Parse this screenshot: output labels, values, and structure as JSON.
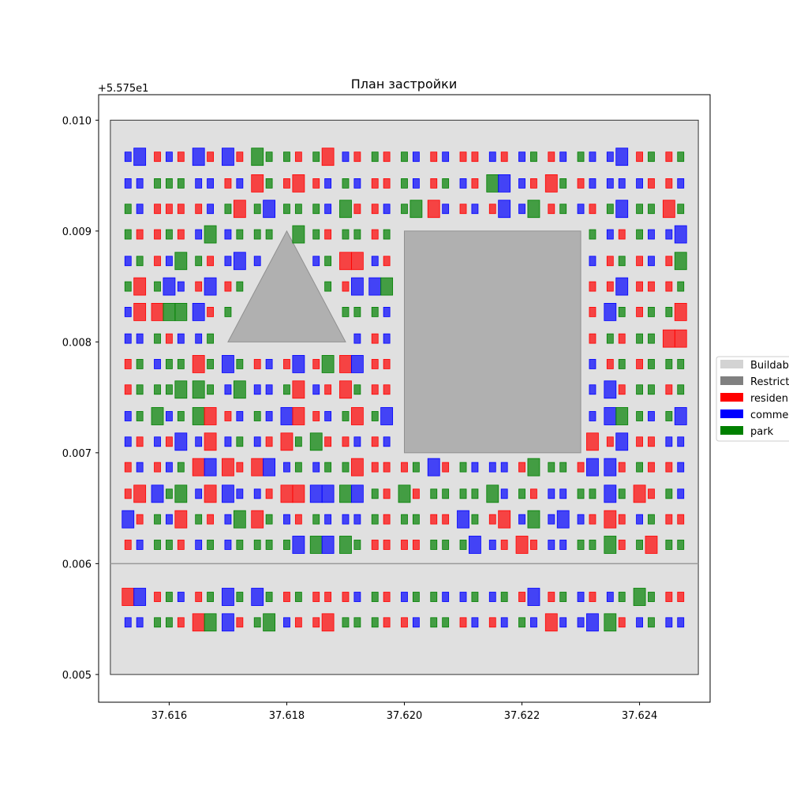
{
  "chart_data": {
    "type": "map",
    "title": "План застройки",
    "y_offset_label": "+5.575e1",
    "y_offset": 55.75,
    "xlim": [
      37.6148,
      37.6252
    ],
    "ylim": [
      0.00475,
      0.01023
    ],
    "x_ticks": [
      37.616,
      37.618,
      37.62,
      37.622,
      37.624
    ],
    "x_tick_labels": [
      "37.616",
      "37.618",
      "37.620",
      "37.622",
      "37.624"
    ],
    "y_ticks": [
      0.005,
      0.006,
      0.007,
      0.008,
      0.009,
      0.01
    ],
    "y_tick_labels": [
      "0.005",
      "0.006",
      "0.007",
      "0.008",
      "0.009",
      "0.010"
    ],
    "buildable_area": {
      "x": [
        37.615,
        37.625
      ],
      "y": [
        0.005,
        0.01
      ],
      "color": "#d3d3d3"
    },
    "divider_y": 0.006,
    "restricted_zones": [
      {
        "shape": "rect",
        "x": [
          37.62,
          37.623
        ],
        "y": [
          0.007,
          0.009
        ]
      },
      {
        "shape": "triangle",
        "points": [
          [
            37.617,
            0.008
          ],
          [
            37.619,
            0.008
          ],
          [
            37.618,
            0.009
          ]
        ]
      }
    ],
    "building_rows_y": [
      0.00547,
      0.0057,
      0.00593,
      0.00617,
      0.0064,
      0.00663,
      0.00687,
      0.0071,
      0.00733,
      0.00757,
      0.0078,
      0.00803,
      0.00827,
      0.0085,
      0.00873,
      0.00897,
      0.0092,
      0.00943,
      0.00967
    ],
    "building_cols_x": [
      37.6153,
      37.6155,
      37.6158,
      37.616,
      37.6162,
      37.6165,
      37.6167,
      37.617,
      37.6172,
      37.6175,
      37.6177,
      37.618,
      37.6182,
      37.6185,
      37.6187,
      37.619,
      37.6192,
      37.6195,
      37.6197,
      37.62,
      37.6202,
      37.6205,
      37.6207,
      37.621,
      37.6212,
      37.6215,
      37.6217,
      37.622,
      37.6222,
      37.6225,
      37.6227,
      37.623,
      37.6232,
      37.6235,
      37.6237,
      37.624,
      37.6242,
      37.6245,
      37.6247
    ],
    "legend": [
      {
        "label": "Buildab",
        "color": "#d3d3d3"
      },
      {
        "label": "Restrict",
        "color": "#808080"
      },
      {
        "label": "residen",
        "color": "#ff0000"
      },
      {
        "label": "comme",
        "color": "#0000ff"
      },
      {
        "label": "park",
        "color": "#008000"
      }
    ],
    "category_colors": {
      "residential": "#ff0000",
      "commercial": "#0000ff",
      "park": "#008000"
    }
  }
}
